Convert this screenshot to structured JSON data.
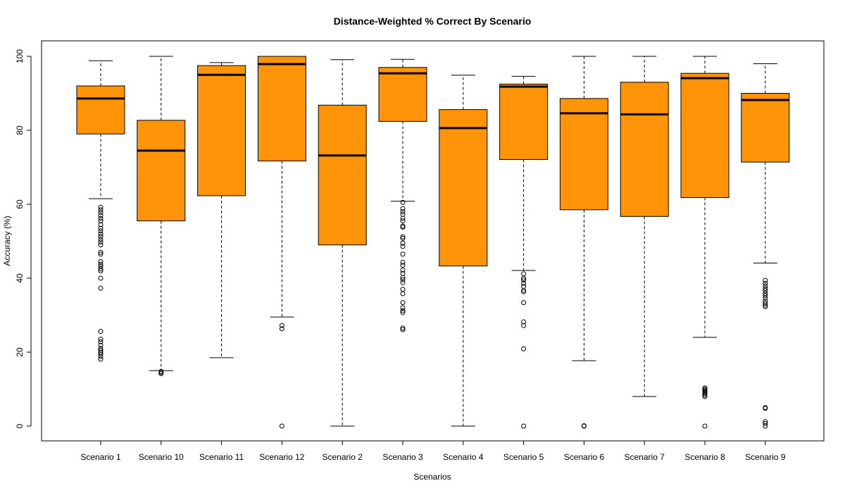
{
  "chart_data": {
    "type": "box",
    "title": "Distance-Weighted % Correct By Scenario",
    "xlabel": "Scenarios",
    "ylabel": "Accuracy (%)",
    "ylim": [
      0,
      100
    ],
    "yticks": [
      0,
      20,
      40,
      60,
      80,
      100
    ],
    "box_color": "#FF9409",
    "categories": [
      "Scenario 1",
      "Scenario 10",
      "Scenario 11",
      "Scenario 12",
      "Scenario 2",
      "Scenario 3",
      "Scenario 4",
      "Scenario 5",
      "Scenario 6",
      "Scenario 7",
      "Scenario 8",
      "Scenario 9"
    ],
    "boxes": [
      {
        "whisker_low": 61.5,
        "q1": 79.0,
        "median": 88.6,
        "q3": 92.0,
        "whisker_high": 98.8,
        "outliers": [
          59.2,
          58.5,
          57.8,
          57.0,
          56.2,
          55.5,
          54.5,
          53.5,
          52.8,
          52.0,
          51.3,
          50.5,
          49.8,
          49.0,
          47.0,
          46.5,
          44.5,
          43.8,
          43.2,
          42.5,
          42.0,
          40.0,
          37.3,
          25.6,
          23.5,
          22.8,
          21.9,
          21.0,
          20.5,
          20.0,
          19.5,
          18.8,
          18.1
        ]
      },
      {
        "whisker_low": 15.0,
        "q1": 55.5,
        "median": 74.5,
        "q3": 82.7,
        "whisker_high": 100.0,
        "outliers": [
          14.8,
          14.5,
          14.2
        ]
      },
      {
        "whisker_low": 18.5,
        "q1": 62.3,
        "median": 95.0,
        "q3": 97.5,
        "whisker_high": 98.3,
        "outliers": []
      },
      {
        "whisker_low": 29.5,
        "q1": 71.7,
        "median": 97.9,
        "q3": 100.0,
        "whisker_high": 100.0,
        "outliers": [
          27.2,
          26.3,
          0.0
        ]
      },
      {
        "whisker_low": 0.0,
        "q1": 49.0,
        "median": 73.2,
        "q3": 86.8,
        "whisker_high": 99.1,
        "outliers": []
      },
      {
        "whisker_low": 60.8,
        "q1": 82.4,
        "median": 95.4,
        "q3": 97.0,
        "whisker_high": 99.2,
        "outliers": [
          60.5,
          58.8,
          58.0,
          57.3,
          56.2,
          55.5,
          54.1,
          53.8,
          51.2,
          50.8,
          49.5,
          48.6,
          46.5,
          44.3,
          43.5,
          42.2,
          41.3,
          40.2,
          39.6,
          38.8,
          37.0,
          35.8,
          33.4,
          32.0,
          31.2,
          30.7,
          26.5,
          26.1
        ]
      },
      {
        "whisker_low": 0.0,
        "q1": 43.3,
        "median": 80.6,
        "q3": 85.6,
        "whisker_high": 94.9,
        "outliers": []
      },
      {
        "whisker_low": 42.1,
        "q1": 72.1,
        "median": 91.8,
        "q3": 92.5,
        "whisker_high": 94.6,
        "outliers": [
          41.2,
          40.0,
          39.5,
          38.6,
          37.8,
          36.7,
          36.3,
          33.4,
          28.2,
          27.2,
          20.9,
          0.0
        ]
      },
      {
        "whisker_low": 17.7,
        "q1": 58.5,
        "median": 84.6,
        "q3": 88.6,
        "whisker_high": 100.0,
        "outliers": [
          0.1,
          0.0
        ]
      },
      {
        "whisker_low": 8.0,
        "q1": 56.7,
        "median": 84.3,
        "q3": 93.0,
        "whisker_high": 100.0,
        "outliers": []
      },
      {
        "whisker_low": 24.0,
        "q1": 61.8,
        "median": 94.1,
        "q3": 95.4,
        "whisker_high": 100.0,
        "outliers": [
          10.3,
          10.0,
          9.7,
          9.4,
          9.1,
          8.8,
          8.4,
          8.0,
          0.0
        ]
      },
      {
        "whisker_low": 44.1,
        "q1": 71.4,
        "median": 88.2,
        "q3": 90.0,
        "whisker_high": 98.0,
        "outliers": [
          39.4,
          38.6,
          37.9,
          37.2,
          36.6,
          35.9,
          35.3,
          34.6,
          33.8,
          33.2,
          32.7,
          32.3,
          5.0,
          4.8,
          1.2,
          0.7,
          0.0
        ]
      }
    ]
  }
}
